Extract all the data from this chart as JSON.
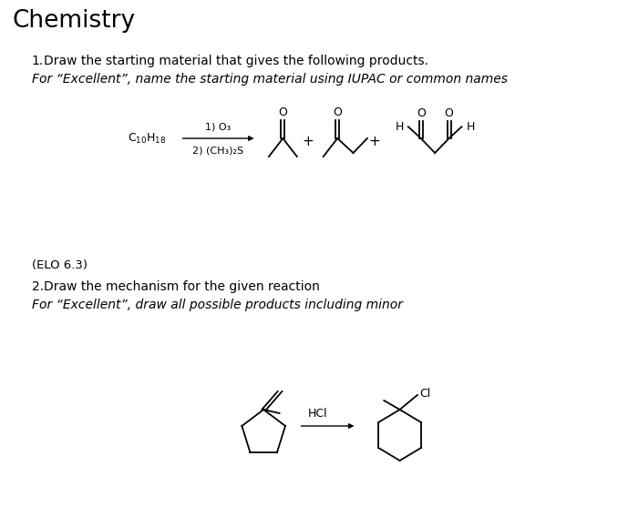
{
  "title": "Chemistry",
  "bg_color": "#ffffff",
  "text_color": "#000000",
  "q1_num": "1.",
  "q1_text": "Draw the starting material that gives the following products.",
  "q1_italic": "For “Excellent”, name the starting material using IUPAC or common names",
  "reagent_step1": "1) O₃",
  "reagent_step2": "2) (CH₃)₂S",
  "elo": "(ELO 6.3)",
  "q2_num": "2.",
  "q2_text": "Draw the mechanism for the given reaction",
  "q2_italic": "For “Excellent”, draw all possible products including minor",
  "hcl_label": "HCl",
  "plus": "+",
  "fig_width": 6.78,
  "fig_height": 5.68,
  "dpi": 100
}
